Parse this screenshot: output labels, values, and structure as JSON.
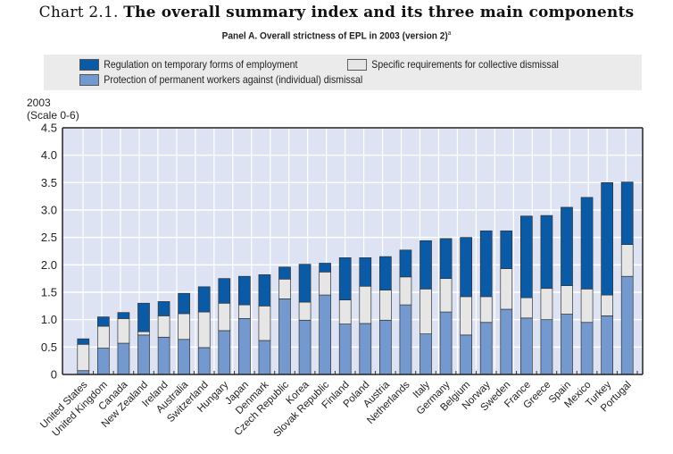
{
  "header": {
    "title_prefix": "Chart 2.1.",
    "title_main": "The overall summary index and its three main components",
    "subtitle": "Panel A. Overall strictness of EPL in 2003 (version 2)",
    "subtitle_note": "a"
  },
  "legend": {
    "items": [
      {
        "label": "Regulation on temporary forms of employment",
        "color": "#0a5aa5"
      },
      {
        "label": "Specific requirements for collective dismissal",
        "color": "#e6e6e6"
      },
      {
        "label": "Protection of permanent workers against (individual) dismissal",
        "color": "#7399cf"
      }
    ]
  },
  "axis": {
    "y_title_line1": "2003",
    "y_title_line2": "(Scale 0-6)"
  },
  "colors": {
    "plot_background": "#dde3f3",
    "temporary": "#0a5aa5",
    "collective": "#e6e6e6",
    "permanent": "#7399cf"
  },
  "chart_data": {
    "type": "bar",
    "stacked": true,
    "title": "The overall summary index and its three main components",
    "subtitle": "Panel A. Overall strictness of EPL in 2003 (version 2)",
    "xlabel": "",
    "ylabel": "2003 (Scale 0-6)",
    "ylim": [
      0,
      4.5
    ],
    "yticks": [
      0,
      0.5,
      1.0,
      1.5,
      2.0,
      2.5,
      3.0,
      3.5,
      4.0,
      4.5
    ],
    "ytick_labels": [
      "0",
      "0.5",
      "1.0",
      "1.5",
      "2.0",
      "2.5",
      "3.0",
      "3.5",
      "4.0",
      "4.5"
    ],
    "grid": true,
    "legend_position": "top",
    "categories": [
      "United States",
      "United Kingdom",
      "Canada",
      "New Zealand",
      "Ireland",
      "Australia",
      "Switzerland",
      "Hungary",
      "Japan",
      "Denmark",
      "Czech Republic",
      "Korea",
      "Slovak Republic",
      "Finland",
      "Poland",
      "Austria",
      "Netherlands",
      "Italy",
      "Germany",
      "Belgium",
      "Norway",
      "Sweden",
      "France",
      "Greece",
      "Spain",
      "Mexico",
      "Turkey",
      "Portugal"
    ],
    "series": [
      {
        "name": "Protection of permanent workers against (individual) dismissal",
        "values": [
          0.07,
          0.48,
          0.57,
          0.72,
          0.68,
          0.64,
          0.49,
          0.8,
          1.02,
          0.62,
          1.38,
          0.99,
          1.45,
          0.92,
          0.93,
          0.99,
          1.27,
          0.74,
          1.14,
          0.72,
          0.95,
          1.19,
          1.03,
          1.0,
          1.1,
          0.95,
          1.07,
          1.79
        ]
      },
      {
        "name": "Specific requirements for collective dismissal",
        "values": [
          0.48,
          0.4,
          0.45,
          0.06,
          0.39,
          0.47,
          0.65,
          0.5,
          0.25,
          0.63,
          0.36,
          0.33,
          0.42,
          0.44,
          0.68,
          0.55,
          0.51,
          0.82,
          0.61,
          0.7,
          0.47,
          0.74,
          0.37,
          0.57,
          0.52,
          0.61,
          0.38,
          0.58
        ]
      },
      {
        "name": "Regulation on temporary forms of employment",
        "values": [
          0.1,
          0.17,
          0.11,
          0.52,
          0.26,
          0.37,
          0.46,
          0.45,
          0.52,
          0.57,
          0.22,
          0.69,
          0.16,
          0.77,
          0.52,
          0.61,
          0.49,
          0.88,
          0.73,
          1.08,
          1.2,
          0.69,
          1.49,
          1.33,
          1.43,
          1.67,
          2.05,
          1.14
        ]
      }
    ],
    "totals": [
      0.65,
      1.05,
      1.13,
      1.3,
      1.33,
      1.48,
      1.6,
      1.75,
      1.79,
      1.82,
      1.96,
      2.01,
      2.03,
      2.13,
      2.13,
      2.15,
      2.27,
      2.44,
      2.48,
      2.5,
      2.62,
      2.62,
      2.89,
      2.9,
      3.05,
      3.23,
      3.5,
      3.51
    ]
  }
}
